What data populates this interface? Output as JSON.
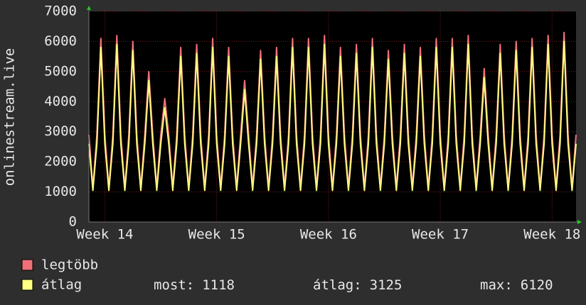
{
  "chart_data": {
    "type": "line",
    "y_label": "onlinestream.live",
    "categories": [
      null,
      null,
      null,
      null,
      "Week 14",
      null,
      null,
      null,
      null,
      null,
      null,
      null,
      null,
      null,
      null,
      null,
      null,
      null,
      null,
      null,
      null,
      null,
      null,
      null,
      null,
      null,
      null,
      null,
      null,
      null,
      null,
      null,
      "Week 15",
      null,
      null,
      null,
      null,
      null,
      null,
      null,
      null,
      null,
      null,
      null,
      null,
      null,
      null,
      null,
      null,
      null,
      null,
      null,
      null,
      null,
      null,
      null,
      null,
      null,
      null,
      null,
      "Week 16",
      null,
      null,
      null,
      null,
      null,
      null,
      null,
      null,
      null,
      null,
      null,
      null,
      null,
      null,
      null,
      null,
      null,
      null,
      null,
      null,
      null,
      null,
      null,
      null,
      null,
      null,
      null,
      "Week 17",
      null,
      null,
      null,
      null,
      null,
      null,
      null,
      null,
      null,
      null,
      null,
      null,
      null,
      null,
      null,
      null,
      null,
      null,
      null,
      null,
      null,
      null,
      null,
      null,
      null,
      null,
      null,
      "Week 18",
      null,
      null,
      null,
      null,
      null,
      null
    ],
    "series": [
      {
        "name": "legtöbb",
        "color": "#f07078",
        "values": [
          2900,
          1150,
          2900,
          6100,
          2900,
          1150,
          2900,
          6200,
          2900,
          1150,
          2900,
          6000,
          2900,
          1150,
          2900,
          5000,
          2900,
          1150,
          2900,
          4100,
          2900,
          1150,
          2900,
          5800,
          2900,
          1150,
          2900,
          5900,
          2900,
          1150,
          2900,
          6100,
          2900,
          1150,
          2900,
          5800,
          2900,
          1150,
          2900,
          4700,
          2900,
          1150,
          2900,
          5700,
          2900,
          1150,
          2900,
          5800,
          2900,
          1150,
          2900,
          6100,
          2900,
          1150,
          2900,
          6100,
          2900,
          1150,
          2900,
          6200,
          2900,
          1150,
          2900,
          5800,
          2900,
          1150,
          2900,
          5900,
          2900,
          1150,
          2900,
          6100,
          2900,
          1150,
          2900,
          5700,
          2900,
          1150,
          2900,
          5900,
          2900,
          1150,
          2900,
          5800,
          2900,
          1150,
          2900,
          6100,
          2900,
          1150,
          2900,
          6100,
          2900,
          1150,
          2900,
          6200,
          2900,
          1150,
          2900,
          5100,
          2900,
          1150,
          2900,
          5900,
          2900,
          1150,
          2900,
          6000,
          2900,
          1150,
          2900,
          6100,
          2900,
          1150,
          2900,
          6200,
          2900,
          1150,
          2900,
          6300,
          2900,
          1150,
          2900
        ]
      },
      {
        "name": "átlag",
        "color": "#ffff80",
        "values": [
          2600,
          1050,
          2600,
          5800,
          2600,
          1050,
          2600,
          5900,
          2600,
          1050,
          2600,
          5700,
          2600,
          1050,
          2600,
          4700,
          2600,
          1050,
          2600,
          3800,
          2600,
          1050,
          2600,
          5500,
          2600,
          1050,
          2600,
          5600,
          2600,
          1050,
          2600,
          5800,
          2600,
          1050,
          2600,
          5500,
          2600,
          1050,
          2600,
          4400,
          2600,
          1050,
          2600,
          5400,
          2600,
          1050,
          2600,
          5500,
          2600,
          1050,
          2600,
          5800,
          2600,
          1050,
          2600,
          5800,
          2600,
          1050,
          2600,
          5900,
          2600,
          1050,
          2600,
          5500,
          2600,
          1050,
          2600,
          5600,
          2600,
          1050,
          2600,
          5800,
          2600,
          1050,
          2600,
          5400,
          2600,
          1050,
          2600,
          5600,
          2600,
          1050,
          2600,
          5500,
          2600,
          1050,
          2600,
          5800,
          2600,
          1050,
          2600,
          5800,
          2600,
          1050,
          2600,
          5900,
          2600,
          1050,
          2600,
          4800,
          2600,
          1050,
          2600,
          5600,
          2600,
          1050,
          2600,
          5700,
          2600,
          1050,
          2600,
          5800,
          2600,
          1050,
          2600,
          5900,
          2600,
          1050,
          2600,
          6000,
          2600,
          1050,
          2600
        ]
      }
    ],
    "ylim": [
      0,
      7000
    ],
    "yticks": [
      0,
      1000,
      2000,
      3000,
      4000,
      5000,
      6000,
      7000
    ],
    "grid": true,
    "stats": [
      {
        "label": "most:",
        "value": 1118
      },
      {
        "label": "átlag:",
        "value": 3125
      },
      {
        "label": "max:",
        "value": 6120
      }
    ]
  }
}
